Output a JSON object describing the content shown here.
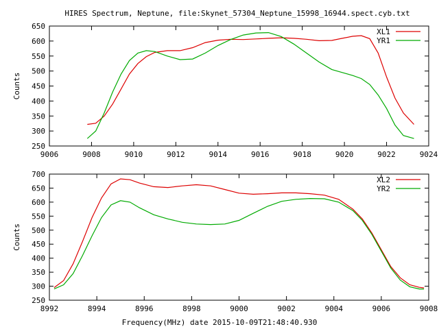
{
  "title": "HIRES Spectrum, Neptune, file:Skynet_57304_Neptune_15998_16944.spect.cyb.txt",
  "colors": {
    "red": "#dd0000",
    "green": "#00aa00",
    "axis": "#000000"
  },
  "chart_data": [
    {
      "type": "line",
      "xlabel": "",
      "ylabel": "Counts",
      "xlim": [
        9006,
        9024
      ],
      "ylim": [
        250,
        650
      ],
      "xticks": [
        "9006",
        "9008",
        "9010",
        "9012",
        "9014",
        "9016",
        "9018",
        "9020",
        "9022",
        "9024"
      ],
      "yticks": [
        "250",
        "300",
        "350",
        "400",
        "450",
        "500",
        "550",
        "600",
        "650"
      ],
      "grid": false,
      "legend": "top-right",
      "series": [
        {
          "name": "XL1",
          "color": "#dd0000",
          "x": [
            9007.8,
            9008.2,
            9008.6,
            9009.0,
            9009.4,
            9009.8,
            9010.2,
            9010.6,
            9011.0,
            9011.6,
            9012.2,
            9012.8,
            9013.4,
            9014.0,
            9014.6,
            9015.2,
            9015.8,
            9016.4,
            9017.0,
            9017.6,
            9018.2,
            9018.8,
            9019.4,
            9019.9,
            9020.4,
            9020.8,
            9021.2,
            9021.6,
            9022.0,
            9022.4,
            9022.8,
            9023.3
          ],
          "y": [
            322,
            326,
            350,
            390,
            440,
            490,
            525,
            548,
            562,
            568,
            568,
            578,
            595,
            603,
            606,
            605,
            607,
            609,
            611,
            609,
            606,
            601,
            602,
            609,
            616,
            618,
            608,
            560,
            480,
            410,
            360,
            322
          ]
        },
        {
          "name": "YR1",
          "color": "#00aa00",
          "x": [
            9007.8,
            9008.2,
            9008.6,
            9009.0,
            9009.4,
            9009.8,
            9010.2,
            9010.6,
            9011.0,
            9011.6,
            9012.2,
            9012.8,
            9013.4,
            9014.0,
            9014.6,
            9015.2,
            9015.8,
            9016.4,
            9017.0,
            9017.6,
            9018.2,
            9018.8,
            9019.4,
            9019.9,
            9020.4,
            9020.8,
            9021.2,
            9021.6,
            9022.0,
            9022.4,
            9022.8,
            9023.3
          ],
          "y": [
            275,
            300,
            360,
            430,
            490,
            535,
            560,
            568,
            565,
            550,
            538,
            540,
            560,
            585,
            605,
            620,
            627,
            628,
            615,
            590,
            560,
            530,
            505,
            495,
            485,
            475,
            455,
            420,
            375,
            320,
            285,
            275
          ]
        }
      ]
    },
    {
      "type": "line",
      "xlabel": "Frequency(MHz) date 2015-10-09T21:48:40.930",
      "ylabel": "Counts",
      "xlim": [
        8992,
        9008
      ],
      "ylim": [
        250,
        700
      ],
      "xticks": [
        "8992",
        "8994",
        "8996",
        "8998",
        "9000",
        "9002",
        "9004",
        "9006",
        "9008"
      ],
      "yticks": [
        "250",
        "300",
        "350",
        "400",
        "450",
        "500",
        "550",
        "600",
        "650",
        "700"
      ],
      "grid": false,
      "legend": "top-right",
      "series": [
        {
          "name": "XL2",
          "color": "#dd0000",
          "x": [
            8992.2,
            8992.6,
            8993.0,
            8993.4,
            8993.8,
            8994.2,
            8994.6,
            8995.0,
            8995.4,
            8995.8,
            8996.4,
            8997.0,
            8997.6,
            8998.2,
            8998.8,
            8999.4,
            9000.0,
            9000.6,
            9001.2,
            9001.8,
            9002.4,
            9003.0,
            9003.6,
            9004.2,
            9004.8,
            9005.2,
            9005.6,
            9006.0,
            9006.4,
            9006.8,
            9007.2,
            9007.6,
            9007.8
          ],
          "y": [
            295,
            320,
            380,
            460,
            545,
            615,
            665,
            683,
            680,
            668,
            655,
            652,
            658,
            662,
            658,
            645,
            632,
            628,
            630,
            633,
            633,
            630,
            625,
            610,
            575,
            540,
            490,
            430,
            370,
            330,
            305,
            296,
            294
          ]
        },
        {
          "name": "YR2",
          "color": "#00aa00",
          "x": [
            8992.2,
            8992.6,
            8993.0,
            8993.4,
            8993.8,
            8994.2,
            8994.6,
            8995.0,
            8995.4,
            8995.8,
            8996.4,
            8997.0,
            8997.6,
            8998.2,
            8998.8,
            8999.4,
            9000.0,
            9000.6,
            9001.2,
            9001.8,
            9002.4,
            9003.0,
            9003.6,
            9004.2,
            9004.8,
            9005.2,
            9005.6,
            9006.0,
            9006.4,
            9006.8,
            9007.2,
            9007.6,
            9007.8
          ],
          "y": [
            290,
            305,
            345,
            410,
            480,
            545,
            590,
            605,
            600,
            580,
            555,
            540,
            528,
            522,
            520,
            522,
            535,
            560,
            585,
            603,
            610,
            613,
            612,
            600,
            570,
            535,
            485,
            425,
            365,
            322,
            298,
            290,
            290
          ]
        }
      ]
    }
  ]
}
